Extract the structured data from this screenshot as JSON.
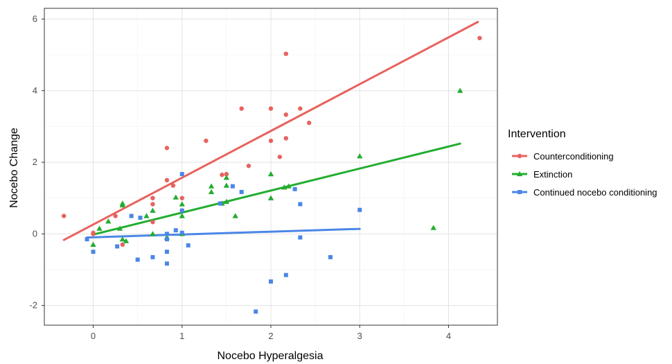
{
  "chart_data": {
    "type": "scatter",
    "xlabel": "Nocebo Hyperalgesia",
    "ylabel": "Nocebo Change",
    "xlim": [
      -0.55,
      4.55
    ],
    "ylim": [
      -2.55,
      6.3
    ],
    "xticks": [
      0,
      1,
      2,
      3,
      4
    ],
    "yticks": [
      -2,
      0,
      2,
      4,
      6
    ],
    "grid": true,
    "legend_title": "Intervention",
    "legend_position": "right",
    "series": [
      {
        "name": "Counterconditioning",
        "color": "#e8625e",
        "marker": "circle",
        "points": [
          [
            -0.33,
            0.5
          ],
          [
            0.0,
            0.03
          ],
          [
            0.0,
            0.0
          ],
          [
            0.25,
            0.5
          ],
          [
            0.33,
            -0.3
          ],
          [
            0.67,
            1.0
          ],
          [
            0.67,
            0.83
          ],
          [
            0.67,
            0.33
          ],
          [
            0.83,
            2.4
          ],
          [
            0.83,
            1.5
          ],
          [
            0.9,
            1.35
          ],
          [
            1.0,
            1.0
          ],
          [
            1.0,
            0.65
          ],
          [
            1.27,
            2.6
          ],
          [
            1.45,
            1.65
          ],
          [
            1.5,
            1.67
          ],
          [
            1.67,
            3.5
          ],
          [
            1.75,
            1.9
          ],
          [
            2.0,
            3.5
          ],
          [
            2.0,
            2.6
          ],
          [
            2.1,
            2.15
          ],
          [
            2.17,
            5.03
          ],
          [
            2.17,
            3.33
          ],
          [
            2.17,
            2.67
          ],
          [
            2.33,
            3.5
          ],
          [
            2.43,
            3.1
          ],
          [
            4.35,
            5.47
          ]
        ],
        "fit": {
          "x": [
            -0.33,
            4.33
          ],
          "y": [
            -0.17,
            5.92
          ]
        }
      },
      {
        "name": "Extinction",
        "color": "#22ad30",
        "marker": "triangle",
        "points": [
          [
            0.0,
            -0.3
          ],
          [
            0.07,
            0.15
          ],
          [
            0.17,
            0.35
          ],
          [
            0.3,
            0.15
          ],
          [
            0.33,
            0.85
          ],
          [
            0.33,
            0.8
          ],
          [
            0.33,
            -0.15
          ],
          [
            0.37,
            -0.2
          ],
          [
            0.6,
            0.5
          ],
          [
            0.67,
            0.65
          ],
          [
            0.67,
            0.0
          ],
          [
            0.83,
            -0.1
          ],
          [
            0.93,
            1.02
          ],
          [
            1.0,
            0.83
          ],
          [
            1.0,
            0.5
          ],
          [
            1.0,
            0.0
          ],
          [
            1.33,
            1.33
          ],
          [
            1.33,
            1.17
          ],
          [
            1.45,
            0.85
          ],
          [
            1.5,
            1.57
          ],
          [
            1.5,
            1.35
          ],
          [
            1.5,
            0.9
          ],
          [
            1.6,
            0.5
          ],
          [
            2.0,
            1.67
          ],
          [
            2.0,
            1.0
          ],
          [
            2.15,
            1.3
          ],
          [
            2.2,
            1.33
          ],
          [
            3.0,
            2.17
          ],
          [
            3.83,
            0.17
          ],
          [
            4.13,
            4.0
          ]
        ],
        "fit": {
          "x": [
            0.0,
            4.13
          ],
          "y": [
            -0.02,
            2.52
          ]
        }
      },
      {
        "name": "Continued nocebo conditioning",
        "color": "#4b86e6",
        "marker": "square",
        "points": [
          [
            -0.07,
            -0.15
          ],
          [
            0.0,
            -0.5
          ],
          [
            0.27,
            -0.35
          ],
          [
            0.43,
            0.5
          ],
          [
            0.5,
            -0.72
          ],
          [
            0.53,
            0.45
          ],
          [
            0.67,
            -0.65
          ],
          [
            0.83,
            -0.83
          ],
          [
            0.83,
            -0.5
          ],
          [
            0.83,
            -0.15
          ],
          [
            0.83,
            0.0
          ],
          [
            0.93,
            0.1
          ],
          [
            1.0,
            1.67
          ],
          [
            1.0,
            0.65
          ],
          [
            1.0,
            0.03
          ],
          [
            1.07,
            -0.32
          ],
          [
            1.43,
            0.85
          ],
          [
            1.57,
            1.33
          ],
          [
            1.67,
            1.17
          ],
          [
            1.83,
            -2.17
          ],
          [
            2.0,
            -1.33
          ],
          [
            2.17,
            -1.15
          ],
          [
            2.27,
            1.25
          ],
          [
            2.33,
            0.83
          ],
          [
            2.33,
            -0.1
          ],
          [
            2.67,
            -0.65
          ],
          [
            3.0,
            0.67
          ]
        ],
        "fit": {
          "x": [
            -0.07,
            3.0
          ],
          "y": [
            -0.1,
            0.14
          ]
        }
      }
    ]
  }
}
